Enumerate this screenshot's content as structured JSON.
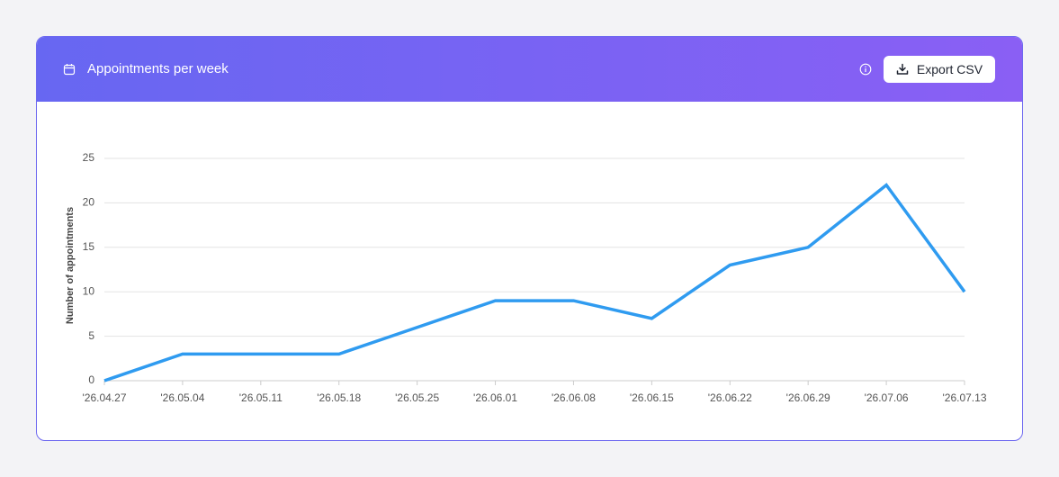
{
  "header": {
    "title": "Appointments per week",
    "button": "Export CSV"
  },
  "chart_data": {
    "type": "line",
    "y_label": "Number of appointments",
    "categories": [
      "'26.04.27",
      "'26.05.04",
      "'26.05.11",
      "'26.05.18",
      "'26.05.25",
      "'26.06.01",
      "'26.06.08",
      "'26.06.15",
      "'26.06.22",
      "'26.06.29",
      "'26.07.06",
      "'26.07.13"
    ],
    "values": [
      0,
      3,
      3,
      3,
      6,
      9,
      9,
      7,
      13,
      15,
      22,
      10
    ],
    "color": "#2f9bf0",
    "ylim": [
      0,
      25
    ],
    "yticks": [
      0,
      5,
      10,
      15,
      20,
      25
    ],
    "grid": true
  }
}
